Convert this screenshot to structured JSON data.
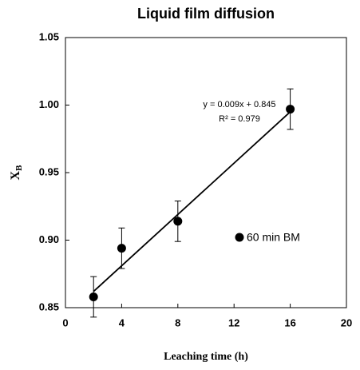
{
  "chart_data": {
    "type": "scatter",
    "title": "Liquid film diffusion",
    "x_label": "Leaching time (h)",
    "y_label": "X",
    "y_label_subscript": "B",
    "x": [
      2,
      4,
      8,
      16
    ],
    "series": [
      {
        "name": "60 min BM",
        "color": "#000000",
        "values": [
          0.858,
          0.894,
          0.914,
          0.997
        ],
        "errors": [
          0.015,
          0.015,
          0.015,
          0.015
        ]
      }
    ],
    "trendline": {
      "x": [
        2,
        16
      ],
      "y": [
        0.862,
        0.995
      ],
      "color": "#000000"
    },
    "annotations": [
      "y = 0.009x + 0.845",
      "R² = 0.979"
    ],
    "xlim": [
      0,
      20
    ],
    "xticks": [
      0,
      4,
      8,
      12,
      16,
      20
    ],
    "ylim": [
      0.85,
      1.05
    ],
    "yticks": [
      {
        "value": 0.85,
        "label": "0.85"
      },
      {
        "value": 0.9,
        "label": "0.90"
      },
      {
        "value": 0.95,
        "label": "0.95"
      },
      {
        "value": 1,
        "label": "1.00"
      },
      {
        "value": 1.05,
        "label": "1.05"
      }
    ],
    "grid": false
  }
}
